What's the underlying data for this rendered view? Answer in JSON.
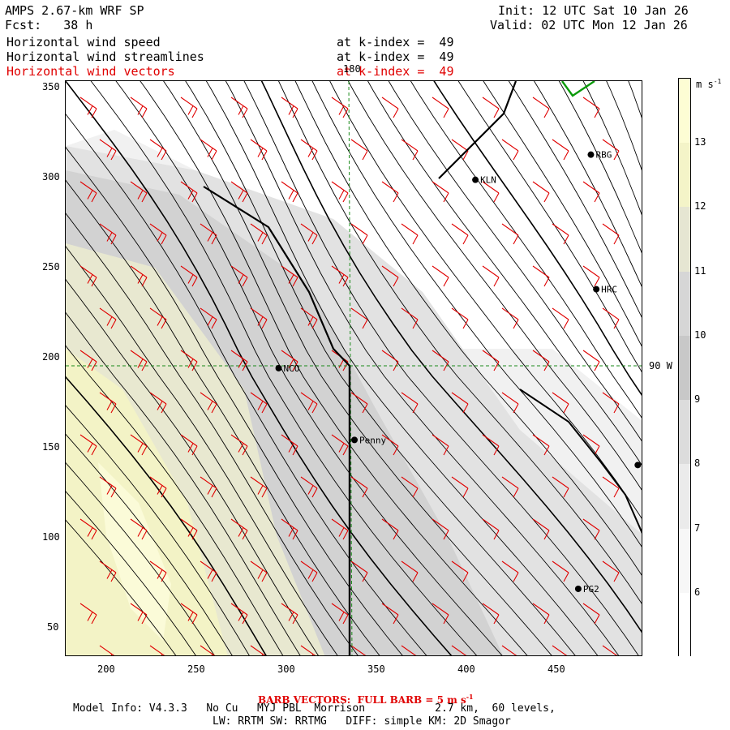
{
  "header": {
    "model_title": "AMPS 2.67-km WRF SP",
    "init": "Init: 12 UTC Sat 10 Jan 26",
    "forecast": "Fcst:   38 h",
    "valid": "Valid: 02 UTC Mon 12 Jan 26"
  },
  "fields": [
    {
      "name": "Horizontal wind speed",
      "level": "at k-index =  49",
      "color": "#000000"
    },
    {
      "name": "Horizontal wind streamlines",
      "level": "at k-index =  49",
      "color": "#000000"
    },
    {
      "name": "Horizontal wind vectors",
      "level": "at k-index =  49",
      "color": "#e00000"
    }
  ],
  "axes": {
    "x_ticks": [
      "200",
      "250",
      "300",
      "350",
      "400",
      "450"
    ],
    "y_ticks": [
      "350",
      "300",
      "250",
      "200",
      "150",
      "100",
      "50"
    ],
    "x_range": [
      175,
      495
    ],
    "y_range": [
      34,
      355
    ],
    "gridline_top_label": "180",
    "gridline_right_label": "90 W"
  },
  "stations": [
    {
      "id": "RBG",
      "x": 466,
      "y": 314
    },
    {
      "id": "KLN",
      "x": 402,
      "y": 300
    },
    {
      "id": "HRC",
      "x": 469,
      "y": 239
    },
    {
      "id": "NCO",
      "x": 293,
      "y": 195
    },
    {
      "id": "Penny",
      "x": 335,
      "y": 155
    },
    {
      "id": "PG2",
      "x": 459,
      "y": 72
    },
    {
      "id": "",
      "x": 492,
      "y": 141
    }
  ],
  "colorbar": {
    "unit": "m s",
    "unit_exp": "-1",
    "labels": [
      "13",
      "12",
      "11",
      "10",
      "9",
      "8",
      "7",
      "6"
    ],
    "colors": [
      "#fdfdd4",
      "#f4f4c8",
      "#e6e6d2",
      "#d6d6d6",
      "#c8c8c8",
      "#dcdcdc",
      "#ebebeb",
      "#f7f7f7",
      "#ffffff"
    ]
  },
  "footer": {
    "barb_note": "BARB VECTORS:  FULL BARB = 5 m s",
    "barb_exp": "-1",
    "model_info": "Model Info: V4.3.3   No Cu   MYJ PBL  Morrison           2.7 km,  60 levels,",
    "physics": "LW: RRTM SW: RRTMG   DIFF: simple KM: 2D Smagor"
  },
  "chart_data": {
    "type": "map",
    "x_range": [
      175,
      495
    ],
    "y_range": [
      34,
      355
    ],
    "wind_speed_range_ms": [
      5,
      13
    ],
    "barb_full_ms": 5
  }
}
